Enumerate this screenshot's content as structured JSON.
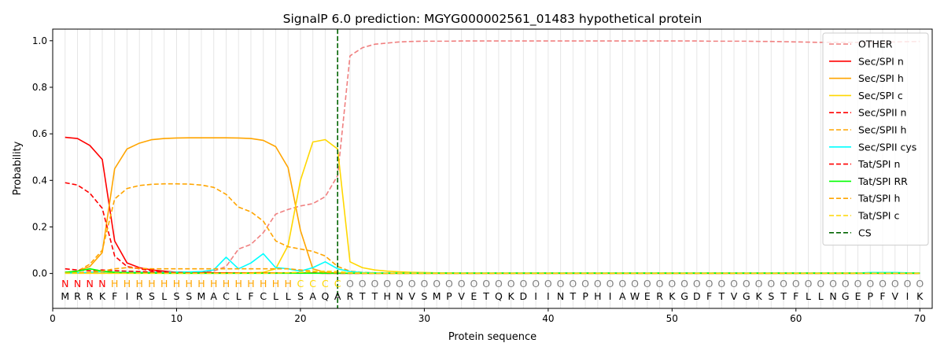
{
  "chart_data": {
    "type": "line",
    "title": "SignalP 6.0 prediction: MGYG000002561_01483 hypothetical protein",
    "xlabel": "Protein sequence",
    "ylabel": "Probability",
    "xlim": [
      0,
      71
    ],
    "ylim": [
      -0.15,
      1.05
    ],
    "xticks": [
      0,
      10,
      20,
      30,
      40,
      50,
      60,
      70
    ],
    "yticks": [
      0.0,
      0.2,
      0.4,
      0.6,
      0.8,
      1.0
    ],
    "grid": "vertical lines at each residue",
    "legend_position": "top-right",
    "sequence": [
      "M",
      "R",
      "R",
      "K",
      "F",
      "I",
      "R",
      "S",
      "L",
      "S",
      "S",
      "M",
      "A",
      "C",
      "L",
      "F",
      "C",
      "L",
      "L",
      "S",
      "A",
      "Q",
      "A",
      "R",
      "T",
      "T",
      "H",
      "N",
      "V",
      "S",
      "M",
      "P",
      "V",
      "E",
      "T",
      "Q",
      "K",
      "D",
      "I",
      "I",
      "N",
      "T",
      "P",
      "H",
      "I",
      "A",
      "W",
      "E",
      "R",
      "K",
      "G",
      "D",
      "F",
      "T",
      "V",
      "G",
      "K",
      "S",
      "T",
      "F",
      "L",
      "L",
      "N",
      "G",
      "E",
      "P",
      "F",
      "V",
      "I",
      "K"
    ],
    "labels": [
      "N",
      "N",
      "N",
      "N",
      "H",
      "H",
      "H",
      "H",
      "H",
      "H",
      "H",
      "H",
      "H",
      "H",
      "H",
      "H",
      "H",
      "H",
      "H",
      "C",
      "C",
      "C",
      "C",
      "O",
      "O",
      "O",
      "O",
      "O",
      "O",
      "O",
      "O",
      "O",
      "O",
      "O",
      "O",
      "O",
      "O",
      "O",
      "O",
      "O",
      "O",
      "O",
      "O",
      "O",
      "O",
      "O",
      "O",
      "O",
      "O",
      "O",
      "O",
      "O",
      "O",
      "O",
      "O",
      "O",
      "O",
      "O",
      "O",
      "O",
      "O",
      "O",
      "O",
      "O",
      "O",
      "O",
      "O",
      "O",
      "O",
      "O"
    ],
    "label_colors": {
      "N": "#ff0000",
      "H": "#ffa500",
      "C": "#ffd700",
      "O": "#808080"
    },
    "cleavage_site": 23,
    "series": [
      {
        "name": "OTHER",
        "color": "#f08080",
        "dash": true,
        "values": [
          0.005,
          0.005,
          0.005,
          0.005,
          0.005,
          0.005,
          0.005,
          0.005,
          0.005,
          0.005,
          0.005,
          0.005,
          0.01,
          0.03,
          0.105,
          0.125,
          0.175,
          0.255,
          0.275,
          0.29,
          0.3,
          0.33,
          0.42,
          0.935,
          0.97,
          0.985,
          0.99,
          0.995,
          0.997,
          0.998,
          0.998,
          0.998,
          0.999,
          0.999,
          0.999,
          0.999,
          0.999,
          0.999,
          0.999,
          0.999,
          0.999,
          0.999,
          0.999,
          0.999,
          0.999,
          0.999,
          0.999,
          0.999,
          0.999,
          0.999,
          0.999,
          0.999,
          0.998,
          0.998,
          0.998,
          0.998,
          0.997,
          0.997,
          0.996,
          0.995,
          0.994,
          0.993,
          0.993,
          0.993,
          0.993,
          0.994,
          0.994,
          0.995,
          0.996,
          0.997
        ]
      },
      {
        "name": "Sec/SPI n",
        "color": "#ff0000",
        "dash": false,
        "values": [
          0.585,
          0.58,
          0.55,
          0.49,
          0.14,
          0.045,
          0.025,
          0.015,
          0.01,
          0.005,
          0.005,
          0.005,
          0.003,
          0.003,
          0.002,
          0.002,
          0.002,
          0.002,
          0.002,
          0.002,
          0.002,
          0.001,
          0.001,
          0.001,
          0.001,
          0.001,
          0.001,
          0.001,
          0.001,
          0.001,
          0.001,
          0.001,
          0.001,
          0.001,
          0.001,
          0.001,
          0.001,
          0.001,
          0.001,
          0.001,
          0.001,
          0.001,
          0.001,
          0.001,
          0.001,
          0.001,
          0.001,
          0.001,
          0.001,
          0.001,
          0.001,
          0.001,
          0.001,
          0.001,
          0.001,
          0.001,
          0.001,
          0.001,
          0.001,
          0.001,
          0.001,
          0.001,
          0.001,
          0.001,
          0.001,
          0.001,
          0.001,
          0.001,
          0.001,
          0.001
        ]
      },
      {
        "name": "Sec/SPI h",
        "color": "#ffa500",
        "dash": false,
        "values": [
          0.005,
          0.01,
          0.03,
          0.09,
          0.45,
          0.535,
          0.56,
          0.575,
          0.58,
          0.582,
          0.583,
          0.583,
          0.583,
          0.583,
          0.582,
          0.58,
          0.572,
          0.545,
          0.455,
          0.185,
          0.02,
          0.005,
          0.002,
          0.001,
          0.001,
          0.001,
          0.001,
          0.001,
          0.001,
          0.001,
          0.001,
          0.001,
          0.001,
          0.001,
          0.001,
          0.001,
          0.001,
          0.001,
          0.001,
          0.001,
          0.001,
          0.001,
          0.001,
          0.001,
          0.001,
          0.001,
          0.001,
          0.001,
          0.001,
          0.001,
          0.001,
          0.001,
          0.001,
          0.001,
          0.001,
          0.001,
          0.001,
          0.001,
          0.001,
          0.001,
          0.001,
          0.001,
          0.001,
          0.001,
          0.001,
          0.001,
          0.001,
          0.001,
          0.001,
          0.001
        ]
      },
      {
        "name": "Sec/SPI c",
        "color": "#ffd700",
        "dash": false,
        "values": [
          0.001,
          0.001,
          0.001,
          0.001,
          0.001,
          0.001,
          0.001,
          0.001,
          0.001,
          0.001,
          0.001,
          0.001,
          0.001,
          0.001,
          0.002,
          0.003,
          0.005,
          0.02,
          0.12,
          0.4,
          0.565,
          0.575,
          0.535,
          0.05,
          0.025,
          0.015,
          0.01,
          0.007,
          0.005,
          0.004,
          0.003,
          0.003,
          0.002,
          0.002,
          0.002,
          0.002,
          0.002,
          0.002,
          0.002,
          0.002,
          0.002,
          0.002,
          0.002,
          0.002,
          0.002,
          0.002,
          0.002,
          0.002,
          0.002,
          0.002,
          0.002,
          0.002,
          0.002,
          0.002,
          0.002,
          0.002,
          0.002,
          0.002,
          0.002,
          0.002,
          0.002,
          0.002,
          0.002,
          0.002,
          0.002,
          0.002,
          0.002,
          0.002,
          0.002,
          0.002
        ]
      },
      {
        "name": "Sec/SPII n",
        "color": "#ff0000",
        "dash": true,
        "values": [
          0.39,
          0.38,
          0.345,
          0.28,
          0.075,
          0.03,
          0.02,
          0.012,
          0.008,
          0.005,
          0.004,
          0.003,
          0.003,
          0.002,
          0.002,
          0.002,
          0.002,
          0.002,
          0.002,
          0.002,
          0.002,
          0.001,
          0.001,
          0.001,
          0.001,
          0.001,
          0.001,
          0.001,
          0.001,
          0.001,
          0.001,
          0.001,
          0.001,
          0.001,
          0.001,
          0.001,
          0.001,
          0.001,
          0.001,
          0.001,
          0.001,
          0.001,
          0.001,
          0.001,
          0.001,
          0.001,
          0.001,
          0.001,
          0.001,
          0.001,
          0.001,
          0.001,
          0.001,
          0.001,
          0.001,
          0.001,
          0.001,
          0.001,
          0.001,
          0.001,
          0.001,
          0.001,
          0.001,
          0.001,
          0.001,
          0.001,
          0.001,
          0.001,
          0.001,
          0.001
        ]
      },
      {
        "name": "Sec/SPII h",
        "color": "#ffa500",
        "dash": true,
        "values": [
          0.005,
          0.01,
          0.04,
          0.1,
          0.32,
          0.365,
          0.378,
          0.383,
          0.385,
          0.385,
          0.384,
          0.38,
          0.37,
          0.34,
          0.285,
          0.265,
          0.225,
          0.14,
          0.115,
          0.105,
          0.095,
          0.075,
          0.03,
          0.01,
          0.005,
          0.003,
          0.002,
          0.002,
          0.002,
          0.002,
          0.002,
          0.002,
          0.002,
          0.002,
          0.002,
          0.002,
          0.002,
          0.002,
          0.002,
          0.002,
          0.002,
          0.002,
          0.002,
          0.002,
          0.002,
          0.002,
          0.002,
          0.002,
          0.002,
          0.002,
          0.002,
          0.002,
          0.002,
          0.002,
          0.002,
          0.002,
          0.002,
          0.002,
          0.002,
          0.002,
          0.002,
          0.002,
          0.002,
          0.002,
          0.002,
          0.002,
          0.002,
          0.002,
          0.002,
          0.002
        ]
      },
      {
        "name": "Sec/SPII cys",
        "color": "#00ffff",
        "dash": false,
        "values": [
          0.002,
          0.003,
          0.005,
          0.008,
          0.005,
          0.005,
          0.005,
          0.005,
          0.005,
          0.006,
          0.006,
          0.008,
          0.015,
          0.07,
          0.02,
          0.045,
          0.085,
          0.025,
          0.02,
          0.01,
          0.025,
          0.05,
          0.02,
          0.008,
          0.004,
          0.003,
          0.002,
          0.002,
          0.002,
          0.002,
          0.002,
          0.002,
          0.002,
          0.002,
          0.002,
          0.002,
          0.002,
          0.002,
          0.002,
          0.002,
          0.002,
          0.002,
          0.002,
          0.002,
          0.002,
          0.002,
          0.002,
          0.002,
          0.002,
          0.002,
          0.002,
          0.002,
          0.002,
          0.002,
          0.002,
          0.002,
          0.002,
          0.002,
          0.002,
          0.002,
          0.002,
          0.002,
          0.002,
          0.002,
          0.002,
          0.004,
          0.004,
          0.004,
          0.003,
          0.002
        ]
      },
      {
        "name": "Tat/SPI n",
        "color": "#ff0000",
        "dash": true,
        "values": [
          0.02,
          0.015,
          0.012,
          0.015,
          0.012,
          0.01,
          0.008,
          0.006,
          0.005,
          0.004,
          0.003,
          0.003,
          0.002,
          0.002,
          0.002,
          0.002,
          0.002,
          0.002,
          0.002,
          0.002,
          0.002,
          0.001,
          0.001,
          0.001,
          0.001,
          0.001,
          0.001,
          0.001,
          0.001,
          0.001,
          0.001,
          0.001,
          0.001,
          0.001,
          0.001,
          0.001,
          0.001,
          0.001,
          0.001,
          0.001,
          0.001,
          0.001,
          0.001,
          0.001,
          0.001,
          0.001,
          0.001,
          0.001,
          0.001,
          0.001,
          0.001,
          0.001,
          0.001,
          0.001,
          0.001,
          0.001,
          0.001,
          0.001,
          0.001,
          0.001,
          0.001,
          0.001,
          0.001,
          0.001,
          0.001,
          0.001,
          0.001,
          0.001,
          0.001,
          0.001
        ]
      },
      {
        "name": "Tat/SPI RR",
        "color": "#00ff00",
        "dash": false,
        "values": [
          0.005,
          0.01,
          0.02,
          0.01,
          0.005,
          0.003,
          0.002,
          0.002,
          0.001,
          0.001,
          0.001,
          0.001,
          0.001,
          0.001,
          0.001,
          0.001,
          0.001,
          0.001,
          0.001,
          0.001,
          0.001,
          0.001,
          0.001,
          0.001,
          0.001,
          0.001,
          0.001,
          0.001,
          0.001,
          0.001,
          0.001,
          0.001,
          0.001,
          0.001,
          0.001,
          0.001,
          0.001,
          0.001,
          0.001,
          0.001,
          0.001,
          0.001,
          0.001,
          0.001,
          0.001,
          0.001,
          0.001,
          0.001,
          0.001,
          0.001,
          0.001,
          0.001,
          0.001,
          0.001,
          0.001,
          0.001,
          0.001,
          0.001,
          0.001,
          0.001,
          0.001,
          0.001,
          0.001,
          0.001,
          0.001,
          0.001,
          0.001,
          0.001,
          0.001,
          0.001
        ]
      },
      {
        "name": "Tat/SPI h",
        "color": "#ffa500",
        "dash": true,
        "values": [
          0.002,
          0.003,
          0.005,
          0.01,
          0.02,
          0.025,
          0.022,
          0.02,
          0.02,
          0.02,
          0.02,
          0.02,
          0.02,
          0.02,
          0.02,
          0.02,
          0.02,
          0.02,
          0.02,
          0.015,
          0.01,
          0.005,
          0.003,
          0.002,
          0.001,
          0.001,
          0.001,
          0.001,
          0.001,
          0.001,
          0.001,
          0.001,
          0.001,
          0.001,
          0.001,
          0.001,
          0.001,
          0.001,
          0.001,
          0.001,
          0.001,
          0.001,
          0.001,
          0.001,
          0.001,
          0.001,
          0.001,
          0.001,
          0.001,
          0.001,
          0.001,
          0.001,
          0.001,
          0.001,
          0.001,
          0.001,
          0.001,
          0.001,
          0.001,
          0.001,
          0.001,
          0.001,
          0.001,
          0.001,
          0.001,
          0.001,
          0.001,
          0.001,
          0.001,
          0.001
        ]
      },
      {
        "name": "Tat/SPI c",
        "color": "#ffd700",
        "dash": true,
        "values": [
          0.001,
          0.001,
          0.001,
          0.001,
          0.001,
          0.001,
          0.001,
          0.001,
          0.001,
          0.001,
          0.001,
          0.001,
          0.001,
          0.001,
          0.001,
          0.001,
          0.001,
          0.002,
          0.003,
          0.005,
          0.008,
          0.01,
          0.008,
          0.003,
          0.002,
          0.001,
          0.001,
          0.001,
          0.001,
          0.001,
          0.001,
          0.001,
          0.001,
          0.001,
          0.001,
          0.001,
          0.001,
          0.001,
          0.001,
          0.001,
          0.001,
          0.001,
          0.001,
          0.001,
          0.001,
          0.001,
          0.001,
          0.001,
          0.001,
          0.001,
          0.001,
          0.001,
          0.001,
          0.001,
          0.001,
          0.001,
          0.001,
          0.001,
          0.001,
          0.001,
          0.001,
          0.001,
          0.001,
          0.001,
          0.001,
          0.001,
          0.001,
          0.001,
          0.001,
          0.001
        ]
      }
    ],
    "legend": [
      {
        "name": "OTHER",
        "color": "#f08080",
        "dash": true
      },
      {
        "name": "Sec/SPI n",
        "color": "#ff0000",
        "dash": false
      },
      {
        "name": "Sec/SPI h",
        "color": "#ffa500",
        "dash": false
      },
      {
        "name": "Sec/SPI c",
        "color": "#ffd700",
        "dash": false
      },
      {
        "name": "Sec/SPII n",
        "color": "#ff0000",
        "dash": true
      },
      {
        "name": "Sec/SPII h",
        "color": "#ffa500",
        "dash": true
      },
      {
        "name": "Sec/SPII cys",
        "color": "#00ffff",
        "dash": false
      },
      {
        "name": "Tat/SPI n",
        "color": "#ff0000",
        "dash": true
      },
      {
        "name": "Tat/SPI RR",
        "color": "#00ff00",
        "dash": false
      },
      {
        "name": "Tat/SPI h",
        "color": "#ffa500",
        "dash": true
      },
      {
        "name": "Tat/SPI c",
        "color": "#ffd700",
        "dash": true
      },
      {
        "name": "CS",
        "color": "#006400",
        "dash": true
      }
    ]
  }
}
